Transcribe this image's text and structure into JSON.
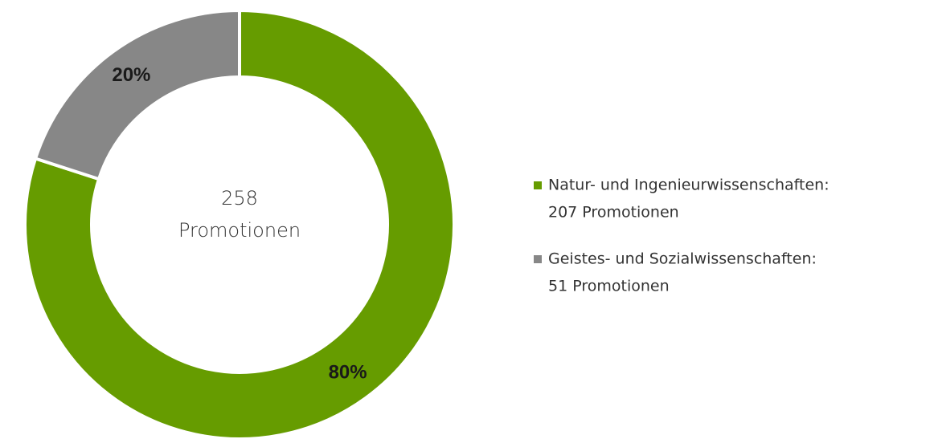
{
  "chart_data": {
    "type": "pie",
    "categories": [
      "Natur- und Ingenieurwissenschaften:",
      "Geistes- und Sozialwissenschaften:"
    ],
    "legend_details": [
      "207 Promotionen",
      "51 Promotionen"
    ],
    "values": [
      80,
      20
    ],
    "value_labels": [
      "80%",
      "20%"
    ],
    "colors": [
      "#669c00",
      "#878787"
    ],
    "center_lines": [
      "258",
      "Promotionen"
    ],
    "donut": true,
    "legend": "right"
  }
}
